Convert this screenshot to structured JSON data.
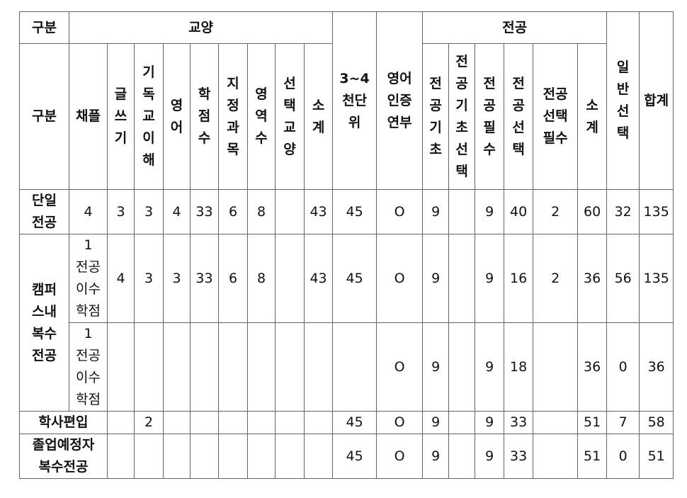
{
  "header": {
    "category": "구분",
    "liberal_arts": "교양",
    "majors": "전공",
    "range_3_4k": "3~4\n천단\n위",
    "english_cert": "영어\n인증\n연부",
    "general_elective": "일반선택",
    "total": "합계"
  },
  "subheader": {
    "category": "구분",
    "chapel": "채플",
    "writing": "글쓰기",
    "christianity": "기독교이해",
    "english": "영어",
    "credits": "학점수",
    "designated": "지정과목",
    "areas": "영역수",
    "elective_liberal": "선택교양",
    "liberal_subtotal": "소계",
    "major_basic": "전공기초",
    "major_basic_elective": "전공기초선택",
    "major_required": "전공필수",
    "major_elective": "전공선택",
    "major_elective_required": "전공\n선택\n필수",
    "major_subtotal": "소계"
  },
  "rows": [
    {
      "label": "단일\n전공",
      "sub": "",
      "cells": [
        "4",
        "3",
        "3",
        "4",
        "33",
        "6",
        "8",
        "",
        "43",
        "45",
        "O",
        "9",
        "",
        "9",
        "40",
        "2",
        "60",
        "32",
        "135"
      ]
    },
    {
      "label": "캠퍼\n스내\n복수\n전공",
      "sub": "1\n전공\n이수\n학점",
      "cells": [
        "4",
        "3",
        "3",
        "33",
        "6",
        "8",
        "",
        "43",
        "45",
        "O",
        "9",
        "",
        "9",
        "16",
        "2",
        "36",
        "56",
        "135"
      ]
    },
    {
      "label": "",
      "sub": "1\n전공\n이수\n학점",
      "cells": [
        "",
        "",
        "",
        "",
        "",
        "",
        "",
        "",
        "",
        "O",
        "9",
        "",
        "9",
        "18",
        "",
        "36",
        "0",
        "36"
      ]
    },
    {
      "label": "학사편입",
      "cells": [
        "",
        "2",
        "",
        "",
        "",
        "",
        "",
        "",
        "45",
        "O",
        "9",
        "",
        "9",
        "33",
        "",
        "51",
        "7",
        "58"
      ]
    },
    {
      "label": "졸업예정자\n복수전공",
      "cells": [
        "",
        "",
        "",
        "",
        "",
        "",
        "",
        "",
        "45",
        "O",
        "9",
        "",
        "9",
        "33",
        "",
        "51",
        "0",
        "51"
      ]
    }
  ]
}
